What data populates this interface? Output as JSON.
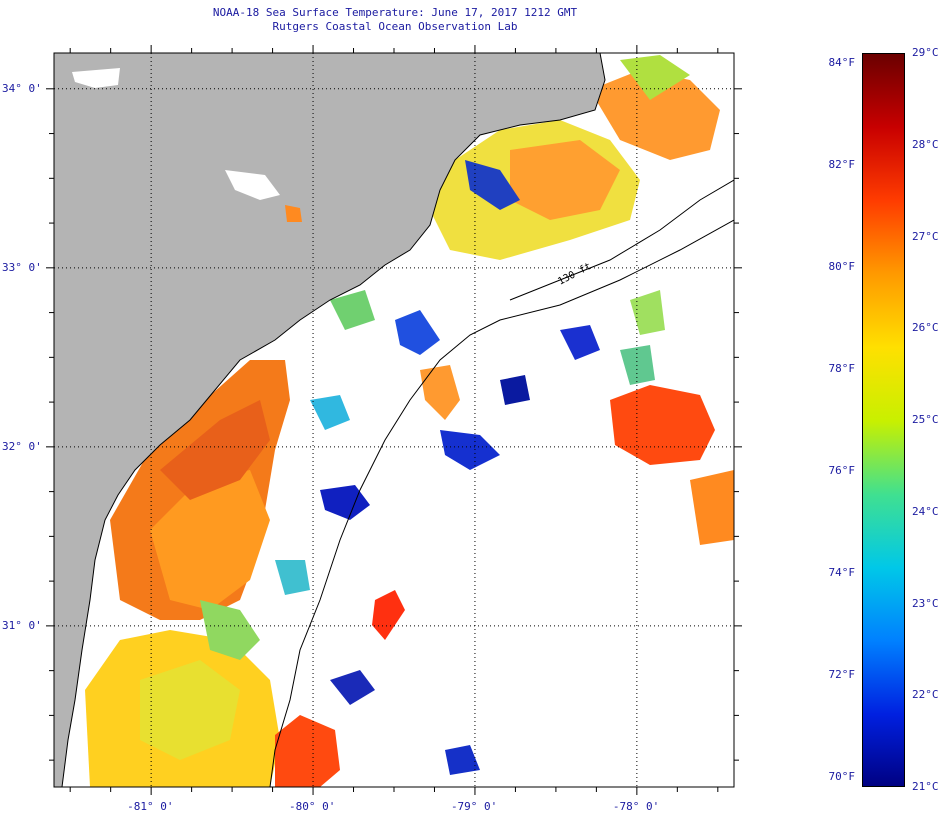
{
  "title": {
    "line1": "NOAA-18 Sea Surface Temperature:  June 17, 2017 1212 GMT",
    "line2": "Rutgers Coastal Ocean Observation Lab"
  },
  "map": {
    "lon_range": [
      -81.6,
      -77.4
    ],
    "lat_range": [
      30.1,
      34.2
    ],
    "lat_labels": [
      "34° 0'",
      "33° 0'",
      "32° 0'",
      "31° 0'"
    ],
    "lat_values": [
      34,
      33,
      32,
      31
    ],
    "lon_labels": [
      "-81° 0'",
      "-80° 0'",
      "-79° 0'",
      "-78° 0'"
    ],
    "lon_values": [
      -81,
      -80,
      -79,
      -78
    ],
    "contour_label": "130 ft",
    "land_color": "#b4b4b4",
    "no_data_color": "#ffffff"
  },
  "colorbar": {
    "fahrenheit_labels": [
      "84°F",
      "82°F",
      "80°F",
      "78°F",
      "76°F",
      "74°F",
      "72°F",
      "70°F"
    ],
    "fahrenheit_values": [
      84,
      82,
      80,
      78,
      76,
      74,
      72,
      70
    ],
    "celsius_labels": [
      "29°C",
      "28°C",
      "27°C",
      "26°C",
      "25°C",
      "24°C",
      "23°C",
      "22°C",
      "21°C"
    ],
    "celsius_values": [
      29,
      28,
      27,
      26,
      25,
      24,
      23,
      22,
      21
    ],
    "range_c": [
      21,
      29
    ],
    "colors": [
      "#6b0000",
      "#c80000",
      "#ff3c00",
      "#ff9a00",
      "#ffe000",
      "#c8f000",
      "#40e090",
      "#00c8e8",
      "#0080ff",
      "#0020e0",
      "#000080"
    ]
  }
}
